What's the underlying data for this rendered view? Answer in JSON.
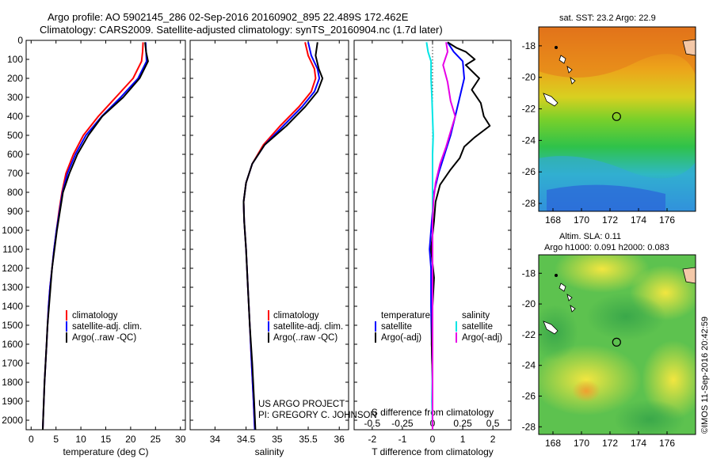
{
  "title_line1": "Argo profile: AO 5902145_286 02-Sep-2016 20160902_895 22.489S 172.462E",
  "title_line2": "Climatology: CARS2009. Satellite-adjusted climatology: synTS_20160904.nc (1.7d later)",
  "credit": "US ARGO PROJECT",
  "pi": "PI: GREGORY C. JOHNSON",
  "watermark": "©IMOS 11-Sep-2016 20:42:59",
  "colors": {
    "climatology": "#ff0000",
    "satellite": "#0000ff",
    "argo": "#000000",
    "sal_satellite": "#00e5e5",
    "sal_argo": "#e600e6"
  },
  "chart_data": [
    {
      "type": "line",
      "name": "temperature-profile",
      "xlabel": "temperature (deg C)",
      "ylabel": "",
      "xlim": [
        -1,
        31
      ],
      "ylim": [
        2050,
        0
      ],
      "xticks": [
        0,
        5,
        10,
        15,
        20,
        25,
        30
      ],
      "yticks": [
        0,
        100,
        200,
        300,
        400,
        500,
        600,
        700,
        800,
        900,
        1000,
        1100,
        1200,
        1300,
        1400,
        1500,
        1600,
        1700,
        1800,
        1900,
        2000
      ],
      "legend": [
        "climatology",
        "satellite-adj. clim.",
        "Argo(..raw -QC)"
      ],
      "series": [
        {
          "name": "climatology",
          "color": "#ff0000",
          "points": [
            [
              22.5,
              10
            ],
            [
              22.4,
              60
            ],
            [
              22.2,
              110
            ],
            [
              20.5,
              200
            ],
            [
              17,
              300
            ],
            [
              13.5,
              400
            ],
            [
              10.5,
              500
            ],
            [
              8.5,
              600
            ],
            [
              7,
              700
            ],
            [
              6.2,
              800
            ],
            [
              5.6,
              900
            ],
            [
              5.1,
              1000
            ],
            [
              4.6,
              1100
            ],
            [
              4.2,
              1200
            ],
            [
              3.8,
              1300
            ],
            [
              3.5,
              1400
            ],
            [
              3.3,
              1500
            ],
            [
              3.1,
              1600
            ],
            [
              2.9,
              1700
            ],
            [
              2.7,
              1800
            ],
            [
              2.55,
              1900
            ],
            [
              2.4,
              2000
            ],
            [
              2.35,
              2050
            ]
          ]
        },
        {
          "name": "satellite-adj. clim.",
          "color": "#0000ff",
          "points": [
            [
              23,
              10
            ],
            [
              23.1,
              60
            ],
            [
              23.2,
              110
            ],
            [
              21.5,
              200
            ],
            [
              18,
              300
            ],
            [
              14.2,
              400
            ],
            [
              11,
              500
            ],
            [
              8.9,
              600
            ],
            [
              7.3,
              700
            ],
            [
              6.3,
              800
            ],
            [
              5.7,
              900
            ],
            [
              5.1,
              1000
            ],
            [
              4.6,
              1100
            ],
            [
              4.2,
              1200
            ],
            [
              3.8,
              1300
            ],
            [
              3.5,
              1400
            ],
            [
              3.3,
              1500
            ],
            [
              3.1,
              1600
            ],
            [
              2.9,
              1700
            ],
            [
              2.7,
              1800
            ],
            [
              2.55,
              1900
            ],
            [
              2.4,
              2000
            ],
            [
              2.35,
              2050
            ]
          ]
        },
        {
          "name": "Argo(..raw -QC)",
          "color": "#000000",
          "points": [
            [
              22.9,
              10
            ],
            [
              23.1,
              60
            ],
            [
              23.5,
              110
            ],
            [
              21.8,
              200
            ],
            [
              18.5,
              300
            ],
            [
              14.3,
              400
            ],
            [
              11.5,
              500
            ],
            [
              9.3,
              600
            ],
            [
              7.7,
              700
            ],
            [
              6.4,
              800
            ],
            [
              5.8,
              900
            ],
            [
              5.2,
              1000
            ],
            [
              4.7,
              1100
            ],
            [
              4.2,
              1200
            ],
            [
              3.9,
              1300
            ],
            [
              3.6,
              1400
            ],
            [
              3.3,
              1500
            ],
            [
              3.1,
              1600
            ],
            [
              2.9,
              1700
            ],
            [
              2.7,
              1800
            ],
            [
              2.55,
              1900
            ],
            [
              2.4,
              2000
            ],
            [
              2.35,
              2050
            ]
          ]
        }
      ]
    },
    {
      "type": "line",
      "name": "salinity-profile",
      "xlabel": "salinity",
      "ylabel": "",
      "xlim": [
        33.6,
        36.15
      ],
      "ylim": [
        2050,
        0
      ],
      "xticks": [
        34,
        34.5,
        35,
        35.5,
        36
      ],
      "legend": [
        "climatology",
        "satellite-adj. clim.",
        "Argo(..raw -QC)"
      ],
      "series": [
        {
          "name": "climatology",
          "color": "#ff0000",
          "points": [
            [
              35.45,
              10
            ],
            [
              35.5,
              80
            ],
            [
              35.6,
              150
            ],
            [
              35.62,
              200
            ],
            [
              35.55,
              270
            ],
            [
              35.35,
              350
            ],
            [
              35.05,
              450
            ],
            [
              34.78,
              550
            ],
            [
              34.6,
              650
            ],
            [
              34.5,
              750
            ],
            [
              34.46,
              850
            ],
            [
              34.47,
              950
            ],
            [
              34.5,
              1100
            ],
            [
              34.53,
              1300
            ],
            [
              34.56,
              1500
            ],
            [
              34.59,
              1700
            ],
            [
              34.62,
              1900
            ],
            [
              34.64,
              2050
            ]
          ]
        },
        {
          "name": "satellite-adj. clim.",
          "color": "#0000ff",
          "points": [
            [
              35.5,
              10
            ],
            [
              35.55,
              80
            ],
            [
              35.65,
              150
            ],
            [
              35.68,
              200
            ],
            [
              35.6,
              270
            ],
            [
              35.4,
              350
            ],
            [
              35.1,
              450
            ],
            [
              34.8,
              550
            ],
            [
              34.6,
              650
            ],
            [
              34.5,
              750
            ],
            [
              34.46,
              850
            ],
            [
              34.47,
              950
            ],
            [
              34.5,
              1100
            ],
            [
              34.53,
              1300
            ],
            [
              34.56,
              1500
            ],
            [
              34.59,
              1700
            ],
            [
              34.62,
              1900
            ],
            [
              34.64,
              2050
            ]
          ]
        },
        {
          "name": "Argo(..raw -QC)",
          "color": "#000000",
          "points": [
            [
              35.65,
              10
            ],
            [
              35.62,
              80
            ],
            [
              35.67,
              150
            ],
            [
              35.73,
              200
            ],
            [
              35.65,
              270
            ],
            [
              35.45,
              350
            ],
            [
              35.15,
              450
            ],
            [
              34.8,
              550
            ],
            [
              34.6,
              650
            ],
            [
              34.5,
              750
            ],
            [
              34.46,
              850
            ],
            [
              34.47,
              950
            ],
            [
              34.5,
              1100
            ],
            [
              34.53,
              1300
            ],
            [
              34.56,
              1500
            ],
            [
              34.6,
              1700
            ],
            [
              34.63,
              1900
            ],
            [
              34.65,
              2050
            ]
          ]
        }
      ]
    },
    {
      "type": "line",
      "name": "difference-profile",
      "xlabel": "T difference from climatology",
      "x2label": "S difference from climatology",
      "ylabel": "",
      "xlim": [
        -2.6,
        2.6
      ],
      "ylim": [
        2050,
        0
      ],
      "xticks": [
        -2,
        -1,
        0,
        1,
        2
      ],
      "x2ticks": [
        "-0.5",
        "-0.25",
        "0",
        "0.25",
        "0.5"
      ],
      "legend": [
        "temperature",
        "satellite",
        "Argo(-adj)",
        "salinity",
        "satellite",
        "Argo(-adj)"
      ],
      "series": [
        {
          "name": "satellite",
          "color": "#0000ff",
          "points": [
            [
              0.5,
              10
            ],
            [
              0.7,
              60
            ],
            [
              1,
              110
            ],
            [
              1.05,
              200
            ],
            [
              0.9,
              300
            ],
            [
              0.75,
              400
            ],
            [
              0.6,
              500
            ],
            [
              0.4,
              600
            ],
            [
              0.2,
              700
            ],
            [
              0.05,
              800
            ],
            [
              0,
              900
            ],
            [
              -0.1,
              1100
            ],
            [
              -0.05,
              1200
            ],
            [
              -0.05,
              1300
            ],
            [
              -0.05,
              1400
            ],
            [
              -0.03,
              1600
            ],
            [
              0,
              1800
            ],
            [
              0,
              2050
            ]
          ]
        },
        {
          "name": "Argo(-adj)",
          "color": "#000000",
          "points": [
            [
              0.5,
              10
            ],
            [
              0.8,
              40
            ],
            [
              1.1,
              60
            ],
            [
              1.4,
              100
            ],
            [
              1.1,
              130
            ],
            [
              1.55,
              200
            ],
            [
              1.3,
              260
            ],
            [
              1.6,
              330
            ],
            [
              1.7,
              400
            ],
            [
              1.9,
              450
            ],
            [
              1.4,
              510
            ],
            [
              1.05,
              560
            ],
            [
              0.9,
              620
            ],
            [
              0.6,
              680
            ],
            [
              0.25,
              760
            ],
            [
              0.1,
              850
            ],
            [
              0.05,
              950
            ],
            [
              -0.05,
              1100
            ],
            [
              0.05,
              1250
            ],
            [
              0,
              1400
            ],
            [
              -0.03,
              1600
            ],
            [
              0,
              1800
            ],
            [
              0,
              2050
            ]
          ]
        },
        {
          "name": "satellite",
          "color": "#00e5e5",
          "points": [
            [
              -0.2,
              10
            ],
            [
              -0.15,
              60
            ],
            [
              -0.05,
              110
            ],
            [
              -0.05,
              200
            ],
            [
              -0.02,
              300
            ],
            [
              0,
              400
            ],
            [
              0.02,
              500
            ],
            [
              0,
              600
            ],
            [
              0,
              700
            ],
            [
              0,
              800
            ],
            [
              0,
              900
            ],
            [
              0,
              1100
            ],
            [
              0,
              1300
            ],
            [
              0,
              1500
            ],
            [
              0,
              1700
            ],
            [
              -0.02,
              1900
            ],
            [
              0,
              2050
            ]
          ]
        },
        {
          "name": "Argo(-adj)",
          "color": "#e600e6",
          "points": [
            [
              0.45,
              10
            ],
            [
              0.5,
              60
            ],
            [
              0.35,
              130
            ],
            [
              0.5,
              220
            ],
            [
              0.6,
              320
            ],
            [
              0.75,
              400
            ],
            [
              0.6,
              480
            ],
            [
              0.45,
              560
            ],
            [
              0.25,
              650
            ],
            [
              0.1,
              750
            ],
            [
              0.03,
              850
            ],
            [
              0,
              950
            ],
            [
              0,
              1100
            ],
            [
              0,
              1300
            ],
            [
              0,
              1500
            ],
            [
              0,
              1700
            ],
            [
              0,
              1900
            ],
            [
              0,
              2050
            ]
          ]
        }
      ]
    },
    {
      "type": "heatmap",
      "name": "sst-map",
      "title": "sat. SST: 23.2  Argo: 22.9",
      "xlim": [
        167,
        178
      ],
      "ylim": [
        -28.5,
        -16.8
      ],
      "xticks": [
        168,
        170,
        172,
        174,
        176
      ],
      "yticks": [
        -18,
        -20,
        -22,
        -24,
        -26,
        -28
      ],
      "marker": {
        "lon": 172.462,
        "lat": -22.489
      }
    },
    {
      "type": "heatmap",
      "name": "sla-map",
      "title": "Altim. SLA: 0.11",
      "subtitle": "Argo h1000: 0.091  h2000: 0.083",
      "xlim": [
        167,
        178
      ],
      "ylim": [
        -28.5,
        -16.8
      ],
      "xticks": [
        168,
        170,
        172,
        174,
        176
      ],
      "yticks": [
        -18,
        -20,
        -22,
        -24,
        -26,
        -28
      ],
      "marker": {
        "lon": 172.462,
        "lat": -22.489
      }
    }
  ]
}
